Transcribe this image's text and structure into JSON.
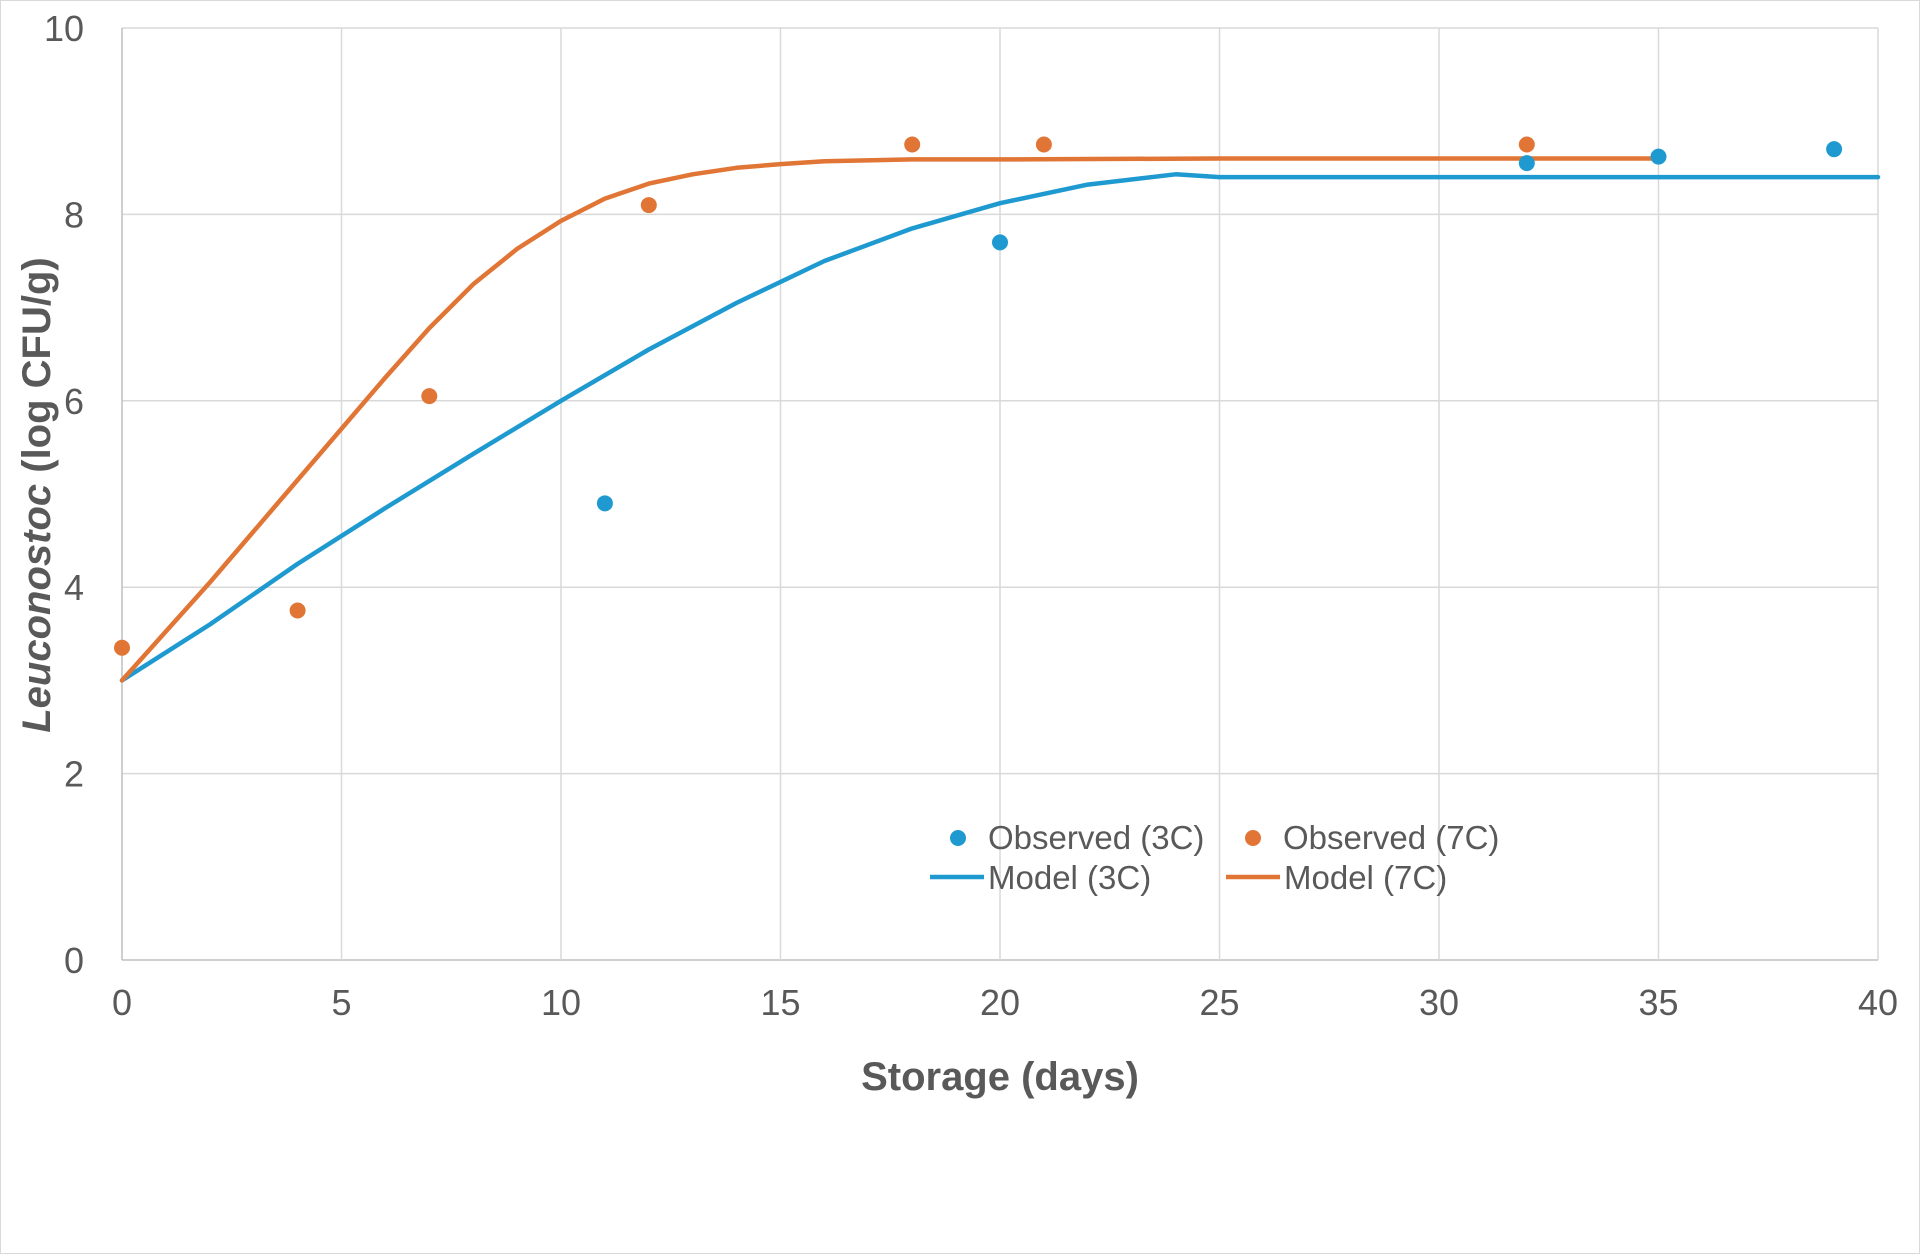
{
  "chart_data": {
    "type": "scatter",
    "xlabel": "Storage (days)",
    "ylabel_italic": "Leuconostoc",
    "ylabel_rest": " (log CFU/g)",
    "xlim": [
      0,
      40
    ],
    "ylim": [
      0,
      10
    ],
    "xticks": [
      "0",
      "5",
      "10",
      "15",
      "20",
      "25",
      "30",
      "35",
      "40"
    ],
    "yticks": [
      "0",
      "2",
      "4",
      "6",
      "8",
      "10"
    ],
    "grid": true,
    "legend_position": "center-bottom",
    "colors": {
      "c3": "#1f9ad0",
      "c7": "#e07535",
      "grid": "#d9d9d9",
      "text": "#595959"
    },
    "series": [
      {
        "name": "Observed (3C)",
        "kind": "points",
        "color": "#1f9ad0",
        "x": [
          11,
          20,
          32,
          35,
          39
        ],
        "y": [
          4.9,
          7.7,
          8.55,
          8.62,
          8.7
        ]
      },
      {
        "name": "Observed (7C)",
        "kind": "points",
        "color": "#e07535",
        "x": [
          0,
          4,
          7,
          12,
          18,
          21,
          32
        ],
        "y": [
          3.35,
          3.75,
          6.05,
          8.1,
          8.75,
          8.75,
          8.75
        ]
      },
      {
        "name": "Model (3C)",
        "kind": "line",
        "color": "#1f9ad0",
        "x": [
          0,
          2,
          4,
          6,
          8,
          10,
          12,
          14,
          16,
          18,
          20,
          22,
          24,
          25,
          30,
          35,
          40
        ],
        "y": [
          3.0,
          3.6,
          4.25,
          4.85,
          5.43,
          6.0,
          6.55,
          7.05,
          7.5,
          7.85,
          8.12,
          8.32,
          8.43,
          8.4,
          8.4,
          8.4,
          8.4
        ]
      },
      {
        "name": "Model (7C)",
        "kind": "line",
        "color": "#e07535",
        "x": [
          0,
          2,
          4,
          6,
          7,
          8,
          9,
          10,
          11,
          12,
          13,
          14,
          15,
          16,
          18,
          20,
          25,
          30,
          35
        ],
        "y": [
          3.0,
          4.05,
          5.15,
          6.25,
          6.78,
          7.25,
          7.63,
          7.93,
          8.17,
          8.33,
          8.43,
          8.5,
          8.54,
          8.57,
          8.59,
          8.59,
          8.6,
          8.6,
          8.6
        ]
      }
    ]
  }
}
